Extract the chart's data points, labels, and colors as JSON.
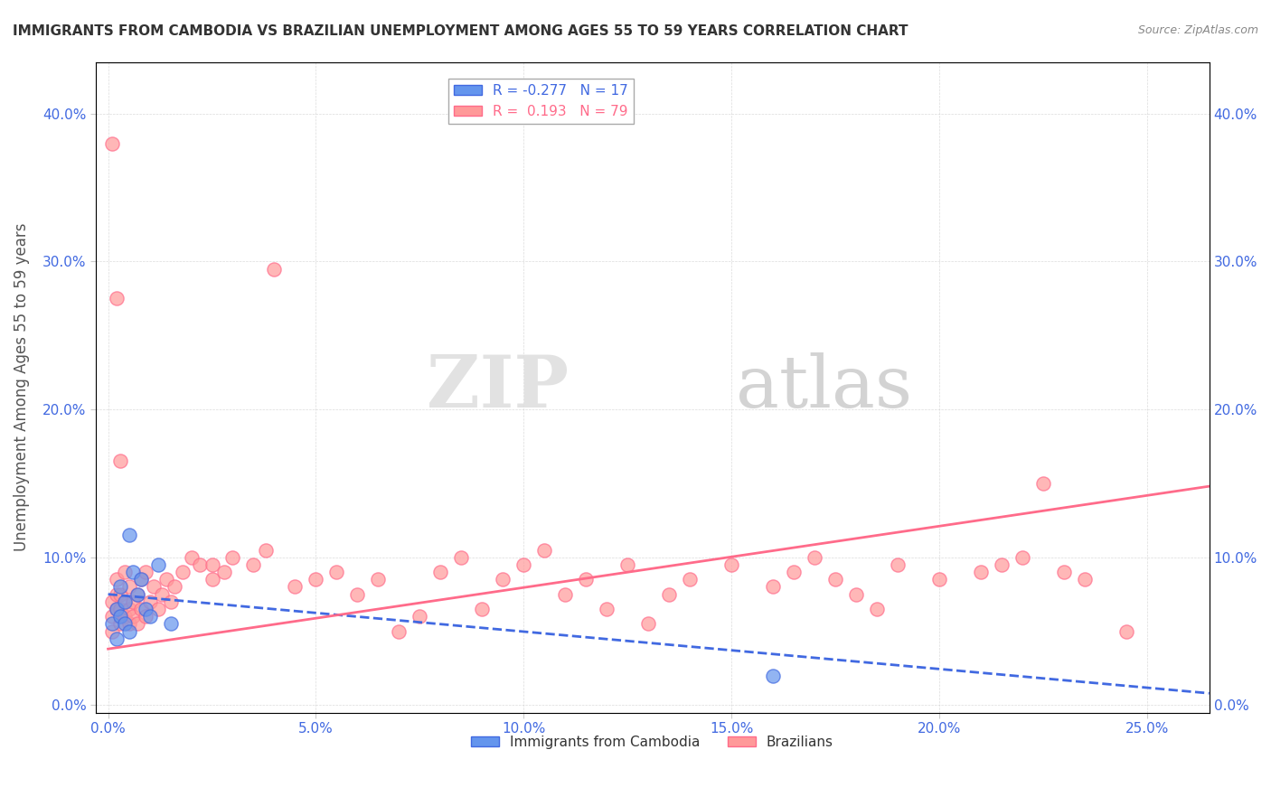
{
  "title": "IMMIGRANTS FROM CAMBODIA VS BRAZILIAN UNEMPLOYMENT AMONG AGES 55 TO 59 YEARS CORRELATION CHART",
  "source": "Source: ZipAtlas.com",
  "ylabel": "Unemployment Among Ages 55 to 59 years",
  "x_tick_labels": [
    "0.0%",
    "5.0%",
    "10.0%",
    "15.0%",
    "20.0%",
    "25.0%"
  ],
  "x_ticks": [
    0.0,
    0.05,
    0.1,
    0.15,
    0.2,
    0.25
  ],
  "y_tick_labels": [
    "0.0%",
    "10.0%",
    "20.0%",
    "30.0%",
    "40.0%"
  ],
  "y_ticks": [
    0.0,
    0.1,
    0.2,
    0.3,
    0.4
  ],
  "xlim": [
    -0.003,
    0.265
  ],
  "ylim": [
    -0.005,
    0.435
  ],
  "legend_R1": "-0.277",
  "legend_N1": "17",
  "legend_R2": "0.193",
  "legend_N2": "79",
  "blue_color": "#6495ED",
  "pink_color": "#FF9999",
  "blue_line_color": "#4169E1",
  "pink_line_color": "#FF6B8A",
  "watermark_zip": "ZIP",
  "watermark_atlas": "atlas",
  "background_color": "#FFFFFF",
  "scatter_blue_x": [
    0.001,
    0.002,
    0.002,
    0.003,
    0.003,
    0.004,
    0.004,
    0.005,
    0.006,
    0.007,
    0.008,
    0.009,
    0.01,
    0.012,
    0.015,
    0.16,
    0.005
  ],
  "scatter_blue_y": [
    0.055,
    0.065,
    0.045,
    0.08,
    0.06,
    0.07,
    0.055,
    0.115,
    0.09,
    0.075,
    0.085,
    0.065,
    0.06,
    0.095,
    0.055,
    0.02,
    0.05
  ],
  "scatter_pink_x": [
    0.001,
    0.001,
    0.001,
    0.001,
    0.002,
    0.002,
    0.002,
    0.002,
    0.003,
    0.003,
    0.003,
    0.003,
    0.004,
    0.004,
    0.004,
    0.005,
    0.005,
    0.005,
    0.006,
    0.006,
    0.007,
    0.007,
    0.008,
    0.008,
    0.009,
    0.009,
    0.01,
    0.011,
    0.012,
    0.013,
    0.014,
    0.015,
    0.016,
    0.018,
    0.02,
    0.022,
    0.025,
    0.025,
    0.028,
    0.03,
    0.035,
    0.038,
    0.04,
    0.045,
    0.05,
    0.055,
    0.06,
    0.065,
    0.07,
    0.075,
    0.08,
    0.085,
    0.09,
    0.095,
    0.1,
    0.105,
    0.11,
    0.115,
    0.12,
    0.125,
    0.13,
    0.135,
    0.14,
    0.15,
    0.16,
    0.165,
    0.17,
    0.175,
    0.18,
    0.185,
    0.19,
    0.2,
    0.21,
    0.215,
    0.22,
    0.225,
    0.23,
    0.235,
    0.245
  ],
  "scatter_pink_y": [
    0.06,
    0.07,
    0.05,
    0.38,
    0.065,
    0.075,
    0.085,
    0.275,
    0.055,
    0.065,
    0.075,
    0.165,
    0.06,
    0.07,
    0.09,
    0.055,
    0.065,
    0.08,
    0.06,
    0.07,
    0.055,
    0.075,
    0.065,
    0.085,
    0.06,
    0.09,
    0.07,
    0.08,
    0.065,
    0.075,
    0.085,
    0.07,
    0.08,
    0.09,
    0.1,
    0.095,
    0.085,
    0.095,
    0.09,
    0.1,
    0.095,
    0.105,
    0.295,
    0.08,
    0.085,
    0.09,
    0.075,
    0.085,
    0.05,
    0.06,
    0.09,
    0.1,
    0.065,
    0.085,
    0.095,
    0.105,
    0.075,
    0.085,
    0.065,
    0.095,
    0.055,
    0.075,
    0.085,
    0.095,
    0.08,
    0.09,
    0.1,
    0.085,
    0.075,
    0.065,
    0.095,
    0.085,
    0.09,
    0.095,
    0.1,
    0.15,
    0.09,
    0.085,
    0.05
  ],
  "blue_trend_x": [
    0.0,
    0.265
  ],
  "blue_trend_y": [
    0.075,
    0.008
  ],
  "pink_trend_x": [
    0.0,
    0.265
  ],
  "pink_trend_y": [
    0.038,
    0.148
  ]
}
